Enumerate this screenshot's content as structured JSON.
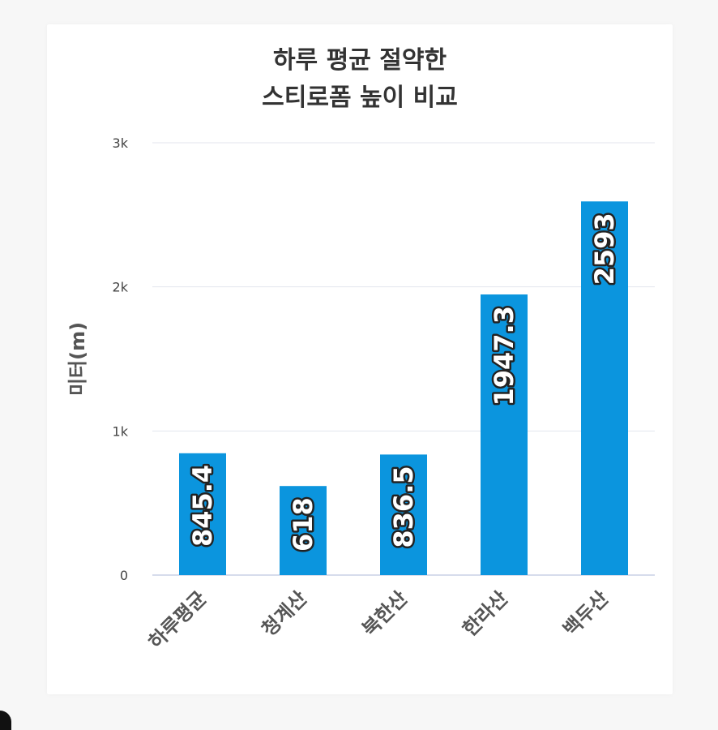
{
  "chart_data": {
    "type": "bar",
    "title_lines": [
      "하루 평균 절약한",
      "스티로폼 높이 비교"
    ],
    "xlabel": "",
    "ylabel": "미터(m)",
    "categories": [
      "하루평균",
      "청계산",
      "북한산",
      "한라산",
      "백두산"
    ],
    "values": [
      845.4,
      618,
      836.5,
      1947.3,
      2593
    ],
    "value_labels": [
      "845.4",
      "618",
      "836.5",
      "1947.3",
      "2593"
    ],
    "ylim": [
      0,
      3000
    ],
    "yticks": [
      {
        "value": 0,
        "label": "0"
      },
      {
        "value": 1000,
        "label": "1k"
      },
      {
        "value": 2000,
        "label": "2k"
      },
      {
        "value": 3000,
        "label": "3k"
      }
    ],
    "grid": true,
    "legend": "none",
    "bar_color": "#0b95de",
    "label_color": "#ffffff",
    "label_outline_color": "#222222"
  }
}
